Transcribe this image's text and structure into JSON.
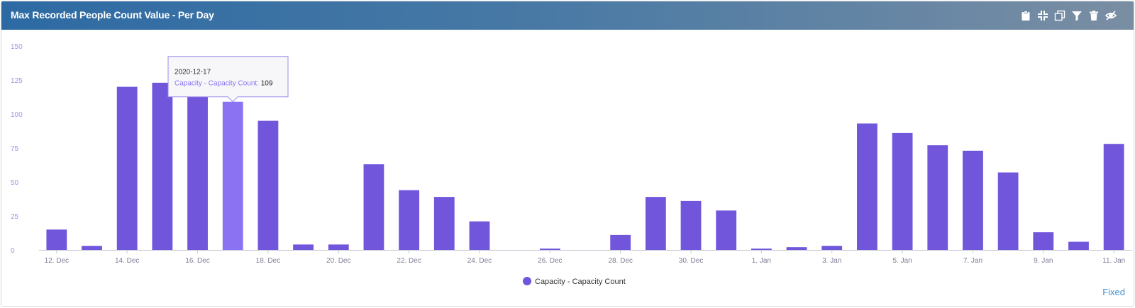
{
  "header": {
    "title": "Max Recorded People Count Value - Per Day",
    "tools": [
      "clipboard-icon",
      "collapse-icon",
      "copy-icon",
      "filter-icon",
      "trash-icon",
      "hide-icon"
    ]
  },
  "colors": {
    "bar": "#7156dc",
    "bar_hover": "#8a72f3",
    "axis_text": "#7e7e96",
    "y_tick_text": "#9d96e6",
    "grid": "#f0f0f4",
    "link": "#3f8fd0"
  },
  "chart_data": {
    "type": "bar",
    "categories": [
      "2020-12-12",
      "2020-12-13",
      "2020-12-14",
      "2020-12-15",
      "2020-12-16",
      "2020-12-17",
      "2020-12-18",
      "2020-12-19",
      "2020-12-20",
      "2020-12-21",
      "2020-12-22",
      "2020-12-23",
      "2020-12-24",
      "2020-12-25",
      "2020-12-26",
      "2020-12-27",
      "2020-12-28",
      "2020-12-29",
      "2020-12-30",
      "2020-12-31",
      "2021-01-01",
      "2021-01-02",
      "2021-01-03",
      "2021-01-04",
      "2021-01-05",
      "2021-01-06",
      "2021-01-07",
      "2021-01-08",
      "2021-01-09",
      "2021-01-10",
      "2021-01-11"
    ],
    "series": [
      {
        "name": "Capacity - Capacity Count",
        "values": [
          15,
          3,
          120,
          123,
          118,
          109,
          95,
          4,
          4,
          63,
          44,
          39,
          21,
          0,
          1,
          0,
          11,
          39,
          36,
          29,
          1,
          2,
          3,
          93,
          86,
          77,
          73,
          57,
          13,
          6,
          78
        ]
      }
    ],
    "x_tick_labels": [
      "12. Dec",
      "14. Dec",
      "16. Dec",
      "18. Dec",
      "20. Dec",
      "22. Dec",
      "24. Dec",
      "26. Dec",
      "28. Dec",
      "30. Dec",
      "1. Jan",
      "3. Jan",
      "5. Jan",
      "7. Jan",
      "9. Jan",
      "11. Jan"
    ],
    "x_tick_every": 2,
    "y_ticks": [
      0,
      25,
      50,
      75,
      100,
      125,
      150
    ],
    "ylim": [
      0,
      150
    ],
    "legend_position": "bottom-center",
    "grid": false,
    "title": "Max Recorded People Count Value - Per Day",
    "xlabel": "",
    "ylabel": "",
    "tooltip": {
      "index": 5,
      "date": "2020-12-17",
      "series_label": "Capacity - Capacity Count:",
      "value": "109"
    }
  },
  "footer": {
    "link_label": "Fixed"
  }
}
